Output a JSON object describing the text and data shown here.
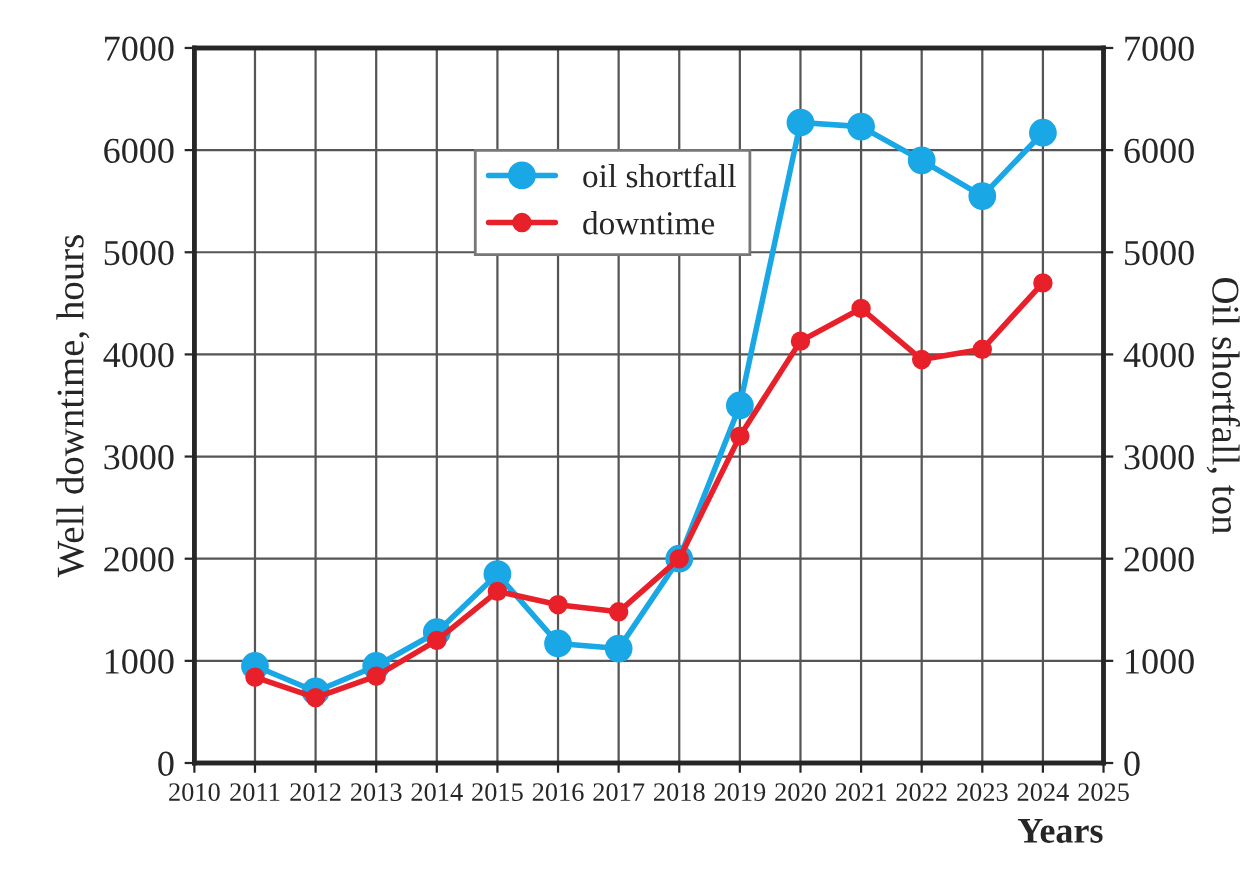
{
  "chart_data": {
    "type": "line",
    "xlabel": "Years",
    "ylabel": "Well downtime, hours",
    "y2label": "Oil shortfall, ton",
    "x": [
      2011,
      2012,
      2013,
      2014,
      2015,
      2016,
      2017,
      2018,
      2019,
      2020,
      2021,
      2022,
      2023,
      2024
    ],
    "series": [
      {
        "name": "oil shortfall",
        "color": "#1aa7e6",
        "axis": "y2",
        "values": [
          950,
          700,
          950,
          1280,
          1850,
          1170,
          1120,
          2000,
          3500,
          6270,
          6230,
          5900,
          5550,
          6170
        ]
      },
      {
        "name": "downtime",
        "color": "#e8202a",
        "axis": "y",
        "values": [
          840,
          640,
          850,
          1200,
          1680,
          1550,
          1480,
          2000,
          3200,
          4130,
          4450,
          3950,
          4050,
          4700
        ]
      }
    ],
    "xlim": [
      2010,
      2025
    ],
    "xticks": [
      2010,
      2011,
      2012,
      2013,
      2014,
      2015,
      2016,
      2017,
      2018,
      2019,
      2020,
      2021,
      2022,
      2023,
      2024,
      2025
    ],
    "ylim": [
      0,
      7000
    ],
    "yticks": [
      0,
      1000,
      2000,
      3000,
      4000,
      5000,
      6000,
      7000
    ],
    "y2lim": [
      0,
      7000
    ],
    "y2ticks": [
      0,
      1000,
      2000,
      3000,
      4000,
      5000,
      6000,
      7000
    ],
    "grid": true,
    "legend": "top",
    "marker": "circle",
    "line_style": "solid"
  }
}
